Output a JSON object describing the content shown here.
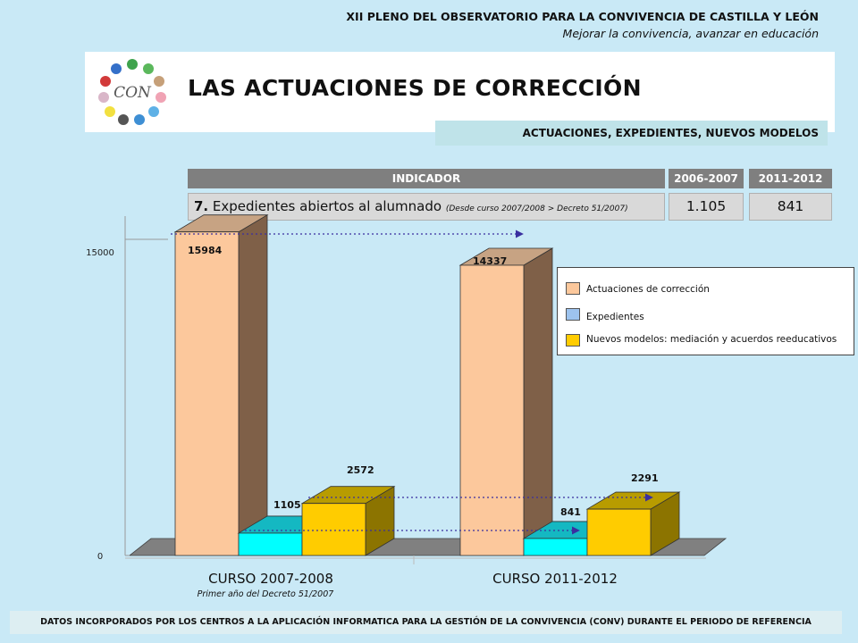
{
  "header": {
    "title": "XII PLENO DEL OBSERVATORIO PARA LA CONVIVENCIA DE CASTILLA Y LEÓN",
    "subtitle": "Mejorar la convivencia, avanzar en educación"
  },
  "logo": {
    "text": "CON"
  },
  "page_title": "LAS ACTUACIONES DE CORRECCIÓN",
  "sub_banner": "ACTUACIONES, EXPEDIENTES, NUEVOS MODELOS",
  "table": {
    "headers": [
      "INDICADOR",
      "2006-2007",
      "2011-2012"
    ],
    "row": {
      "number": "7.",
      "label": "Expedientes abiertos al alumnado",
      "note": "(Desde curso 2007/2008 > Decreto 51/2007)",
      "v1": "1.105",
      "v2": "841"
    }
  },
  "chart_data": {
    "type": "bar",
    "categories": [
      "CURSO 2007-2008",
      "CURSO 2011-2012"
    ],
    "category_note": "Primer año del Decreto 51/2007",
    "series": [
      {
        "name": "Actuaciones de corrección",
        "values": [
          15984,
          14337
        ],
        "labels": [
          "15984",
          "14337"
        ],
        "color": "#fcc89c",
        "side": "#7f6048",
        "top": "#c7a383"
      },
      {
        "name": "Expedientes",
        "values": [
          1105,
          841
        ],
        "labels": [
          "1105",
          "841"
        ],
        "color": "#00ffff",
        "side": "#1e9ea8",
        "top": "#14b8c2"
      },
      {
        "name": "Nuevos modelos: mediación y acuerdos reeducativos",
        "values": [
          2572,
          2291
        ],
        "labels": [
          "2572",
          "2291"
        ],
        "color": "#ffcc00",
        "side": "#8c7400",
        "top": "#b89c00"
      }
    ],
    "y_ticks": [
      {
        "value": 0,
        "label": "0"
      },
      {
        "value": 15000,
        "label": "15000"
      }
    ],
    "ylim": [
      0,
      16500
    ],
    "legend_position": "right",
    "grid": false
  },
  "footer": "DATOS INCORPORADOS POR LOS CENTROS A LA APLICACIÓN INFORMATICA PARA LA GESTIÓN DE LA CONVIVENCIA (CONV) DURANTE EL PERIODO DE REFERENCIA"
}
